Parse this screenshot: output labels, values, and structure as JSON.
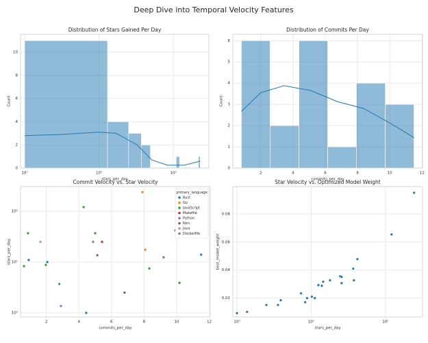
{
  "title": "Deep Dive into Temporal Velocity Features",
  "chart_data": [
    {
      "type": "histogram",
      "title": "Distribution of Stars Gained Per Day",
      "xlabel": "stars_per_day",
      "ylabel": "Count",
      "xscale": "log",
      "color": "#1f77b4",
      "grid": true,
      "bins": [
        1,
        13,
        25,
        37,
        49,
        61,
        73,
        85,
        97,
        109,
        121,
        133,
        145,
        157,
        169,
        181,
        193,
        205,
        217,
        229
      ],
      "counts": [
        11,
        4,
        3,
        2,
        0,
        0,
        0,
        0,
        0,
        1,
        0,
        0,
        0,
        0,
        0,
        0,
        0,
        0,
        1
      ],
      "kde": {
        "x": [
          1,
          3.1,
          10,
          17,
          32.5,
          51.5,
          83,
          141,
          229
        ],
        "values": [
          2.8,
          2.9,
          3.1,
          3.0,
          2.0,
          0.7,
          0.25,
          0.25,
          0.6
        ]
      },
      "xlim": [
        0.88,
        300
      ],
      "xticks": [
        {
          "value": 1,
          "label": "10⁰"
        },
        {
          "value": 10,
          "label": "10¹"
        },
        {
          "value": 100,
          "label": "10²"
        }
      ],
      "ylim": [
        0,
        11.55
      ],
      "yticks": [
        0,
        2,
        4,
        6,
        8,
        10
      ]
    },
    {
      "type": "histogram",
      "title": "Distribution of Commits Per Day",
      "xlabel": "commits_per_day",
      "ylabel": "Count",
      "color": "#1f77b4",
      "grid": true,
      "bins": [
        0.8,
        2.58,
        4.37,
        6.15,
        7.93,
        9.72,
        11.5
      ],
      "counts": [
        6,
        2,
        6,
        1,
        4,
        3
      ],
      "kde": {
        "x": [
          0.8,
          2.0,
          3.45,
          5.1,
          6.75,
          8.4,
          10.1,
          11.5
        ],
        "values": [
          2.67,
          3.55,
          3.88,
          3.65,
          3.13,
          2.8,
          2.08,
          1.43
        ]
      },
      "xlim": [
        0.27,
        12.03
      ],
      "xticks": [
        2,
        4,
        6,
        8,
        10,
        12
      ],
      "ylim": [
        0,
        6.3
      ],
      "yticks": [
        0,
        1,
        2,
        3,
        4,
        5,
        6
      ]
    },
    {
      "type": "scatter",
      "title": "Commit Velocity vs. Star Velocity",
      "xlabel": "commits_per_day",
      "ylabel": "stars_per_day",
      "yscale": "log",
      "grid": true,
      "legend": "upper right",
      "legend_title": "primary_language",
      "series": [
        {
          "name": "Rust",
          "color": "#1f77b4",
          "x": [
            0.92,
            2.06,
            4.45,
            9.92,
            11.5
          ],
          "values": [
            11,
            10,
            1,
            42,
            14
          ]
        },
        {
          "name": "Go",
          "color": "#ff7f0e",
          "x": [
            7.9,
            8.07
          ],
          "values": [
            239,
            17.5
          ]
        },
        {
          "name": "JavaScript",
          "color": "#2ca02c",
          "x": [
            0.63,
            0.88,
            1.97,
            2.8,
            4.29,
            5.0,
            8.32,
            9.2,
            10.17
          ],
          "values": [
            8.3,
            37,
            8.8,
            3.7,
            121,
            37,
            7.5,
            12.4,
            3.9
          ]
        },
        {
          "name": "Makefile",
          "color": "#d62728",
          "x": [
            5.42
          ],
          "values": [
            25
          ]
        },
        {
          "name": "Python",
          "color": "#9467bd",
          "x": [
            2.9,
            4.87
          ],
          "values": [
            1.36,
            25
          ]
        },
        {
          "name": "Nim",
          "color": "#8c564b",
          "x": [
            5.13,
            6.8
          ],
          "values": [
            13.6,
            2.5
          ]
        },
        {
          "name": "Java",
          "color": "#e377c2",
          "x": [
            1.64
          ],
          "values": [
            25
          ]
        },
        {
          "name": "Dockerfile",
          "color": "#7f7f7f",
          "x": [],
          "values": []
        }
      ],
      "xlim": [
        0.42,
        12.06
      ],
      "xticks": [
        2,
        4,
        6,
        8,
        10,
        12
      ],
      "ylim": [
        0.83,
        307
      ],
      "yticks": [
        {
          "value": 1,
          "label": "10⁰"
        },
        {
          "value": 10,
          "label": "10¹"
        },
        {
          "value": 100,
          "label": "10²"
        }
      ]
    },
    {
      "type": "scatter",
      "title": "Star Velocity vs. Optimized Model Weight",
      "xlabel": "stars_per_day",
      "ylabel": "best_model_weight",
      "xscale": "log",
      "grid": true,
      "series": [
        {
          "color": "#1f77b4",
          "x": [
            1,
            1.37,
            2.49,
            3.57,
            3.89,
            7.3,
            8.3,
            8.8,
            10.2,
            11.2,
            12.5,
            13.9,
            14.5,
            17.9,
            24.6,
            25.7,
            25.7,
            36.8,
            37.6,
            41.9,
            121,
            243
          ],
          "values": [
            0.0093,
            0.0102,
            0.0151,
            0.0151,
            0.0185,
            0.0234,
            0.0171,
            0.02,
            0.021,
            0.02,
            0.0293,
            0.0288,
            0.0317,
            0.0327,
            0.0356,
            0.0351,
            0.0307,
            0.041,
            0.0327,
            0.0478,
            0.0654,
            0.0951
          ]
        }
      ],
      "xlim": [
        0.88,
        316
      ],
      "xticks": [
        {
          "value": 1,
          "label": "10⁰"
        },
        {
          "value": 10,
          "label": "10¹"
        },
        {
          "value": 100,
          "label": "10²"
        }
      ],
      "ylim": [
        0.0066,
        0.0995
      ],
      "yticks": [
        0.02,
        0.04,
        0.06,
        0.08
      ]
    }
  ]
}
